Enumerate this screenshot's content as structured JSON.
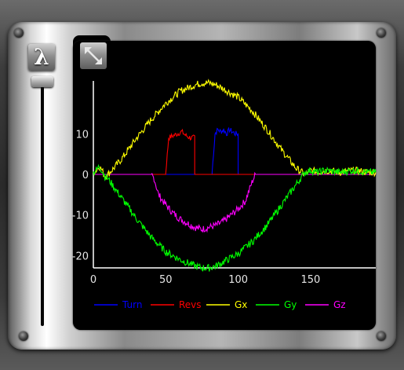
{
  "controls": {
    "lambda_label": "λ",
    "lambda_slider_level": 0.0
  },
  "chart_data": {
    "type": "line",
    "title": "",
    "xlabel": "",
    "ylabel": "",
    "xlim": [
      0,
      195
    ],
    "ylim": [
      -23,
      23
    ],
    "x_ticks": [
      0,
      50,
      100,
      150
    ],
    "y_ticks": [
      10,
      0,
      -10,
      -20
    ],
    "grid": false,
    "legend": "bottom",
    "series": [
      {
        "name": "Turn",
        "color": "#0000ff",
        "points": [
          [
            0,
            0
          ],
          [
            82,
            0
          ],
          [
            82,
            0.5
          ],
          [
            84,
            10
          ],
          [
            86,
            11
          ],
          [
            88,
            10.5
          ],
          [
            90,
            11
          ],
          [
            92,
            10
          ],
          [
            94,
            11
          ],
          [
            96,
            10.5
          ],
          [
            98,
            10
          ],
          [
            100,
            10
          ],
          [
            100,
            0
          ],
          [
            195,
            0
          ]
        ]
      },
      {
        "name": "Revs",
        "color": "#ff0000",
        "points": [
          [
            0,
            0
          ],
          [
            50,
            0
          ],
          [
            50,
            0.5
          ],
          [
            52,
            9
          ],
          [
            55,
            9.5
          ],
          [
            58,
            10
          ],
          [
            61,
            10.5
          ],
          [
            64,
            9.5
          ],
          [
            67,
            9
          ],
          [
            70,
            9
          ],
          [
            70,
            0
          ],
          [
            195,
            0
          ]
        ]
      },
      {
        "name": "Gx",
        "color": "#ffff00",
        "points": [
          [
            0,
            0.5
          ],
          [
            2,
            1
          ],
          [
            4,
            2
          ],
          [
            6,
            1
          ],
          [
            8,
            -0.5
          ],
          [
            10,
            0
          ],
          [
            14,
            1.5
          ],
          [
            20,
            4
          ],
          [
            30,
            9
          ],
          [
            40,
            13.5
          ],
          [
            50,
            17.5
          ],
          [
            60,
            20.5
          ],
          [
            70,
            22
          ],
          [
            75,
            22.5
          ],
          [
            80,
            22.5
          ],
          [
            85,
            22
          ],
          [
            90,
            21
          ],
          [
            100,
            19
          ],
          [
            110,
            15.5
          ],
          [
            120,
            11
          ],
          [
            130,
            6
          ],
          [
            140,
            1.5
          ],
          [
            146,
            0
          ],
          [
            150,
            1
          ],
          [
            155,
            0.5
          ],
          [
            160,
            1
          ],
          [
            170,
            0.5
          ],
          [
            180,
            1
          ],
          [
            190,
            0.5
          ],
          [
            195,
            0.5
          ]
        ]
      },
      {
        "name": "Gy",
        "color": "#00ff00",
        "points": [
          [
            0,
            0.5
          ],
          [
            2,
            1
          ],
          [
            4,
            2
          ],
          [
            6,
            1
          ],
          [
            8,
            -0.5
          ],
          [
            10,
            -1
          ],
          [
            14,
            -3
          ],
          [
            20,
            -6
          ],
          [
            30,
            -11
          ],
          [
            40,
            -15.5
          ],
          [
            50,
            -19
          ],
          [
            60,
            -21
          ],
          [
            70,
            -22.5
          ],
          [
            75,
            -23
          ],
          [
            80,
            -23
          ],
          [
            85,
            -22.5
          ],
          [
            90,
            -21.5
          ],
          [
            100,
            -19.5
          ],
          [
            110,
            -16.5
          ],
          [
            120,
            -12.5
          ],
          [
            130,
            -7.5
          ],
          [
            140,
            -2.5
          ],
          [
            146,
            0.5
          ],
          [
            150,
            1
          ],
          [
            155,
            0.5
          ],
          [
            160,
            1
          ],
          [
            170,
            0.5
          ],
          [
            180,
            1
          ],
          [
            190,
            0.5
          ],
          [
            195,
            0.5
          ]
        ]
      },
      {
        "name": "Gz",
        "color": "#ff00ff",
        "points": [
          [
            0,
            0
          ],
          [
            40,
            0
          ],
          [
            42,
            -1
          ],
          [
            45,
            -5
          ],
          [
            50,
            -7.5
          ],
          [
            55,
            -9.5
          ],
          [
            60,
            -11
          ],
          [
            65,
            -12
          ],
          [
            70,
            -13
          ],
          [
            75,
            -13.5
          ],
          [
            80,
            -13
          ],
          [
            85,
            -12.5
          ],
          [
            90,
            -11.5
          ],
          [
            95,
            -10
          ],
          [
            100,
            -8.5
          ],
          [
            105,
            -6.5
          ],
          [
            110,
            -1.5
          ],
          [
            112,
            0
          ],
          [
            195,
            0
          ]
        ]
      }
    ]
  }
}
